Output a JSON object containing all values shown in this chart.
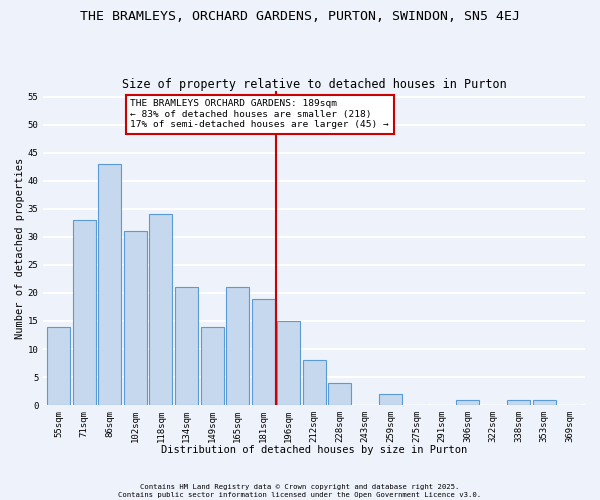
{
  "title": "THE BRAMLEYS, ORCHARD GARDENS, PURTON, SWINDON, SN5 4EJ",
  "subtitle": "Size of property relative to detached houses in Purton",
  "xlabel": "Distribution of detached houses by size in Purton",
  "ylabel": "Number of detached properties",
  "bar_labels": [
    "55sqm",
    "71sqm",
    "86sqm",
    "102sqm",
    "118sqm",
    "134sqm",
    "149sqm",
    "165sqm",
    "181sqm",
    "196sqm",
    "212sqm",
    "228sqm",
    "243sqm",
    "259sqm",
    "275sqm",
    "291sqm",
    "306sqm",
    "322sqm",
    "338sqm",
    "353sqm",
    "369sqm"
  ],
  "bar_values": [
    14,
    33,
    43,
    31,
    34,
    21,
    14,
    21,
    19,
    15,
    8,
    4,
    0,
    2,
    0,
    0,
    1,
    0,
    1,
    1,
    0
  ],
  "bar_color": "#c5d8ed",
  "bar_edge_color": "#5b9bd5",
  "reference_line_x": 8.5,
  "annotation_line1": "THE BRAMLEYS ORCHARD GARDENS: 189sqm",
  "annotation_line2": "← 83% of detached houses are smaller (218)",
  "annotation_line3": "17% of semi-detached houses are larger (45) →",
  "annotation_box_color": "#ffffff",
  "annotation_box_edge": "#cc0000",
  "vline_color": "#cc0000",
  "ylim": [
    0,
    56
  ],
  "yticks": [
    0,
    5,
    10,
    15,
    20,
    25,
    30,
    35,
    40,
    45,
    50,
    55
  ],
  "background_color": "#eef2fa",
  "grid_color": "#ffffff",
  "title_fontsize": 9.5,
  "subtitle_fontsize": 8.5,
  "axis_label_fontsize": 7.5,
  "tick_fontsize": 6.5,
  "annot_fontsize": 6.8,
  "footnote1": "Contains HM Land Registry data © Crown copyright and database right 2025.",
  "footnote2": "Contains public sector information licensed under the Open Government Licence v3.0."
}
